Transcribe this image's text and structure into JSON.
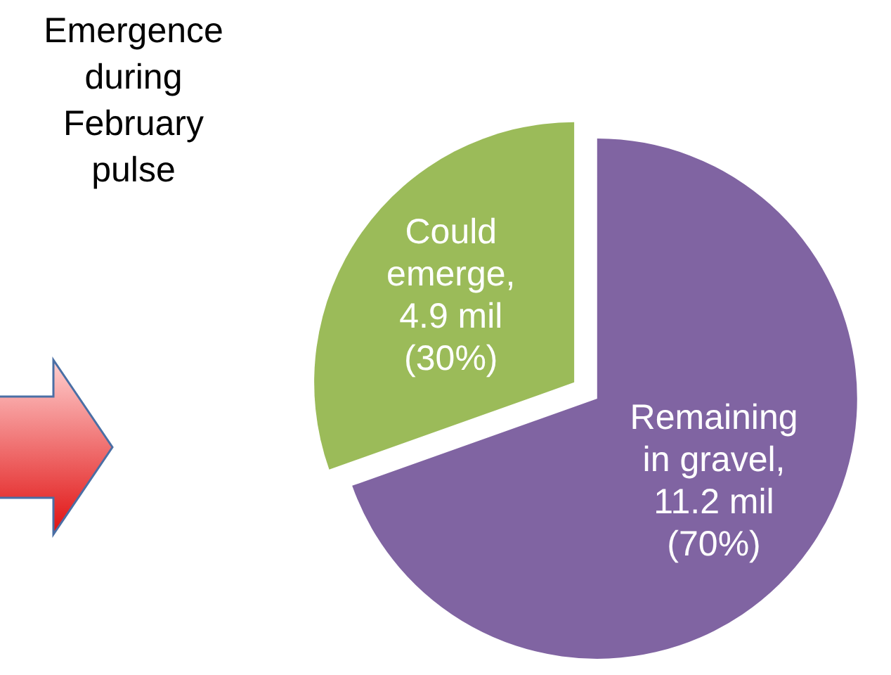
{
  "chart_data": {
    "type": "pie",
    "title": "Emergence during February pulse",
    "categories": [
      "Could emerge, 4.9 mil (30%)",
      "Remaining in gravel, 11.2 mil (70%)"
    ],
    "values": [
      4.9,
      11.2
    ],
    "colors": [
      "#9bbb59",
      "#8064a2"
    ]
  }
}
